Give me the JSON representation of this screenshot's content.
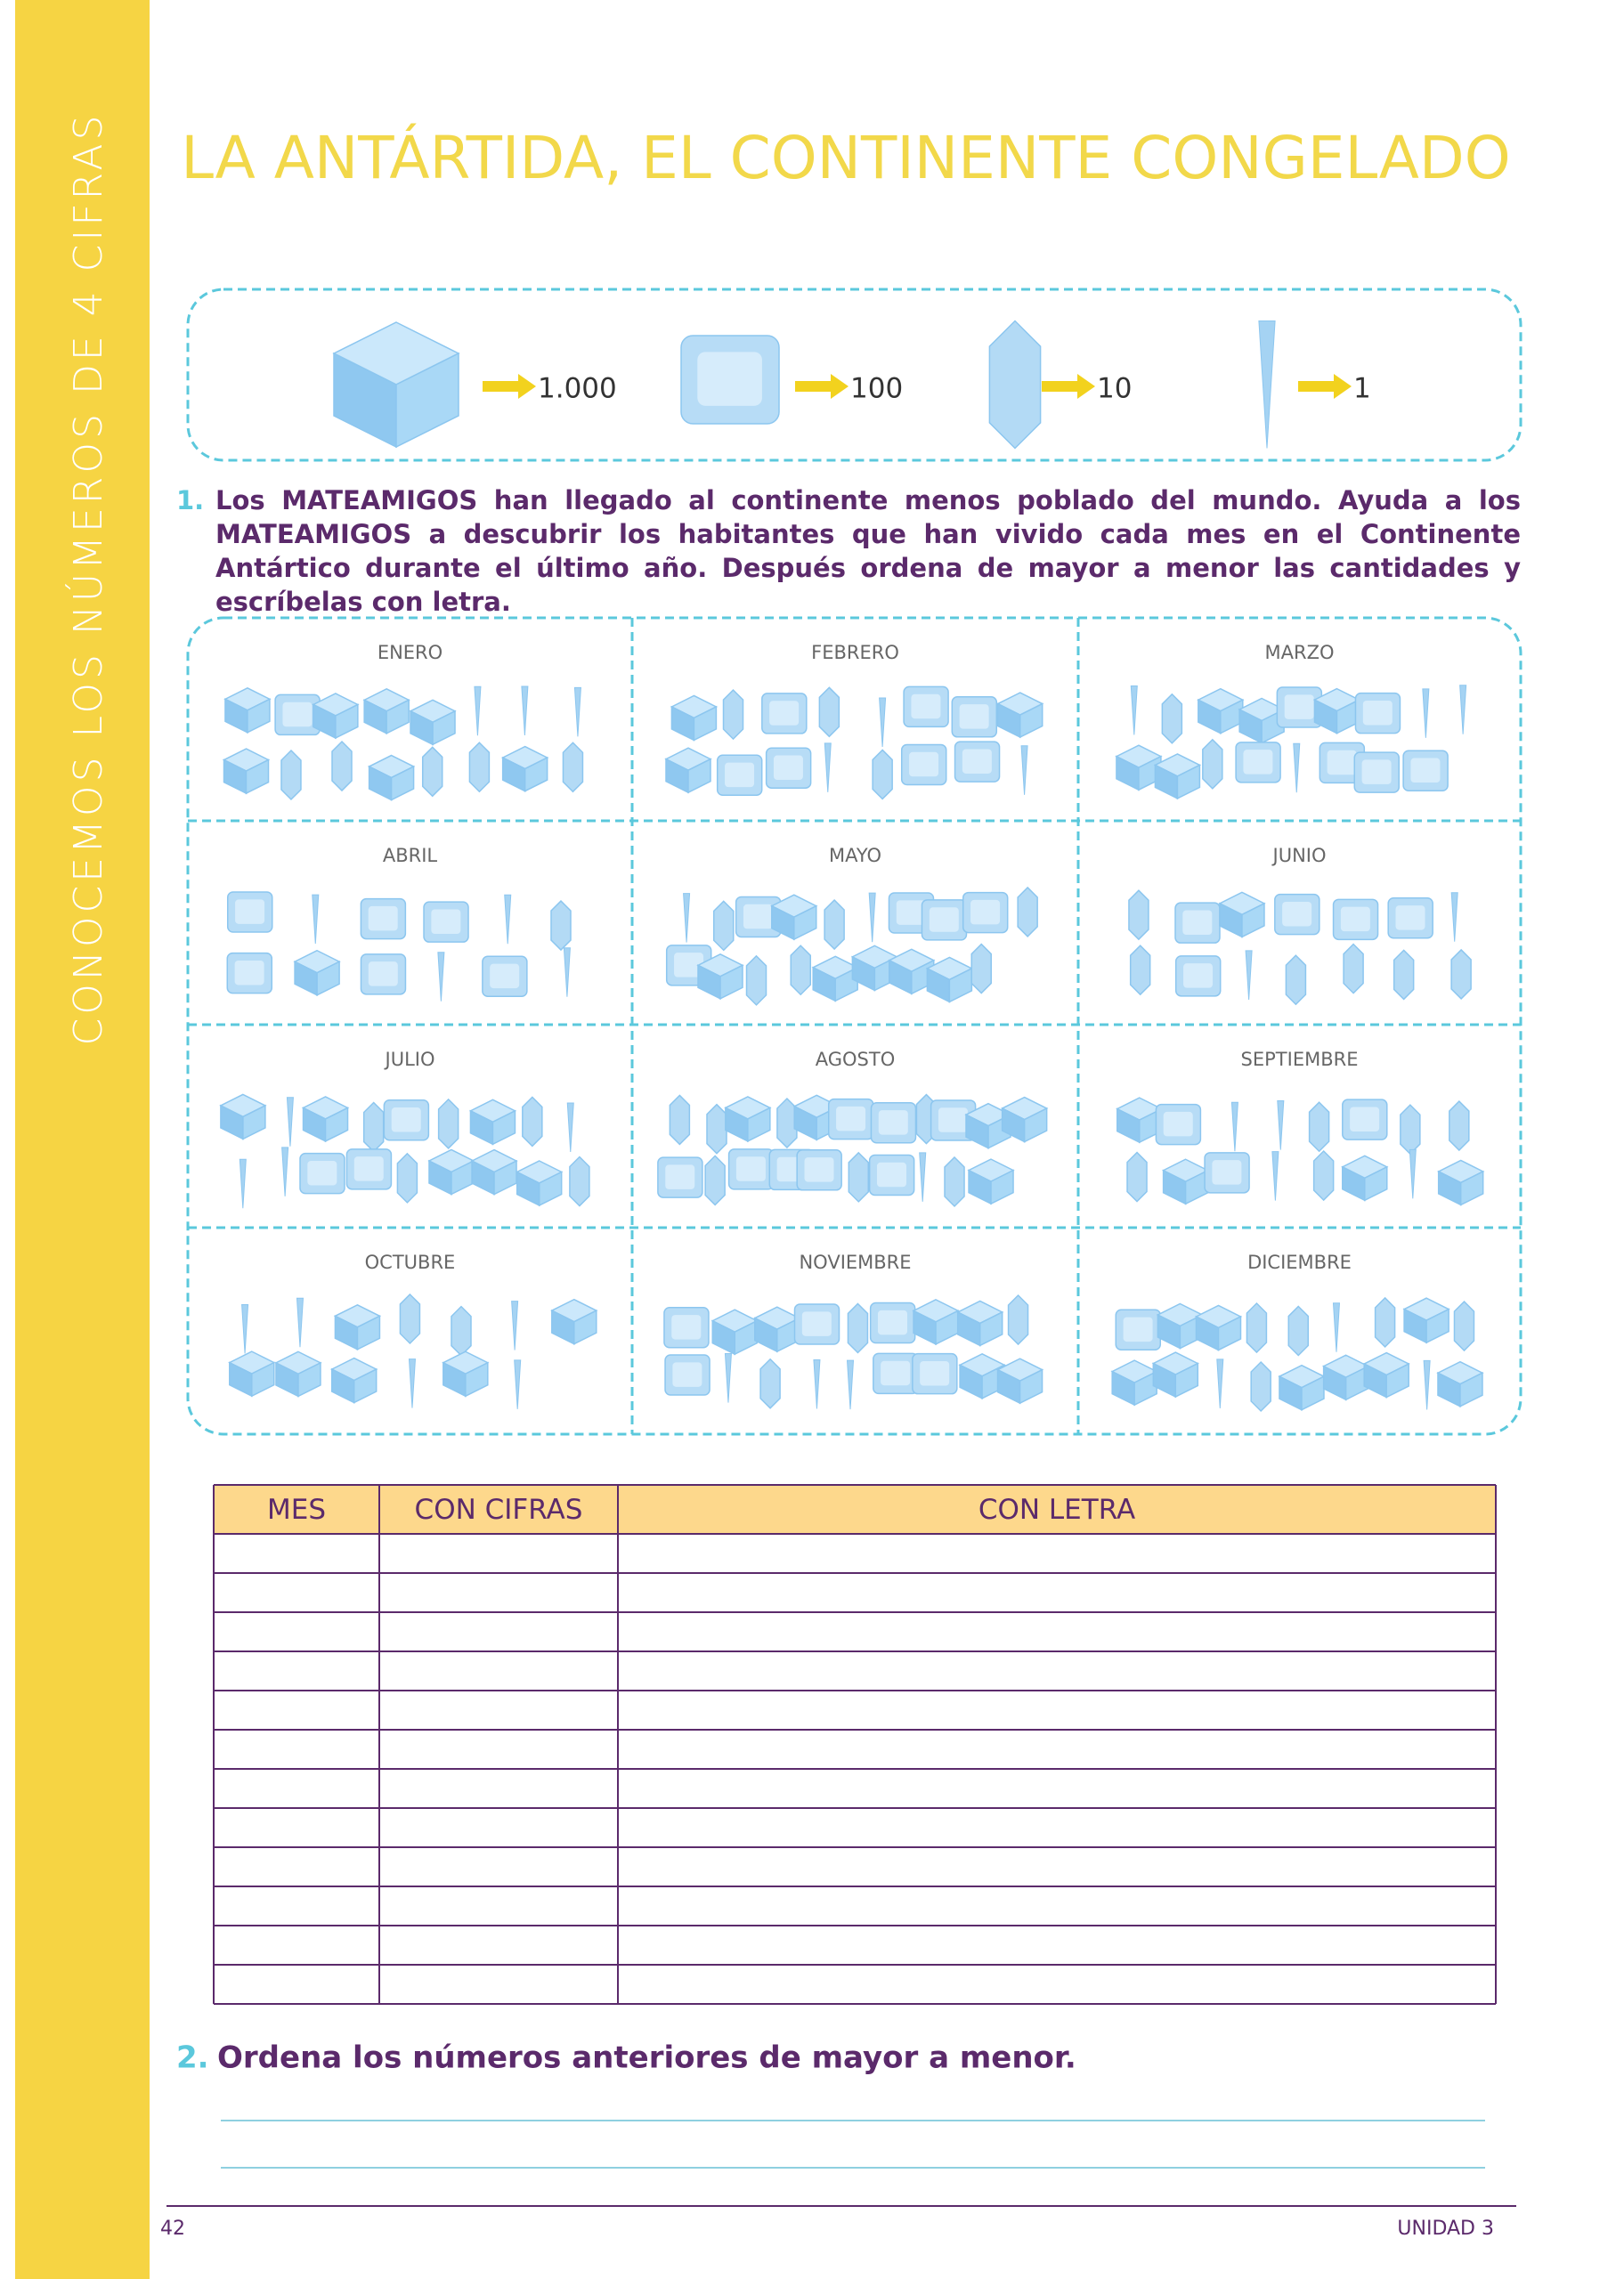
{
  "header": {
    "side_title": "CONOCEMOS LOS NÚMEROS DE 4 CIFRAS",
    "title": "LA ANTÁRTIDA, EL CONTINENTE CONGELADO"
  },
  "legend": {
    "items": [
      "1.000",
      "100",
      "10",
      "1"
    ]
  },
  "exercise1": {
    "number": "1.",
    "text": "Los MATEAMIGOS han llegado al continente menos poblado del mundo. Ayuda a los MATEAMIGOS a descubrir los habitantes que han vivido cada mes en el Continente Antártico durante el último año. Después ordena de mayor a menor las cantidades y escríbelas con letra."
  },
  "months": [
    "ENERO",
    "FEBRERO",
    "MARZO",
    "ABRIL",
    "MAYO",
    "JUNIO",
    "JULIO",
    "AGOSTO",
    "SEPTIEMBRE",
    "OCTUBRE",
    "NOVIEMBRE",
    "DICIEMBRE"
  ],
  "table": {
    "headers": [
      "MES",
      "CON CIFRAS",
      "CON LETRA"
    ]
  },
  "exercise2": {
    "number": "2.",
    "text": "Ordena los números anteriores de mayor a menor."
  },
  "footer": {
    "page": "42",
    "unit": "UNIDAD 3"
  }
}
